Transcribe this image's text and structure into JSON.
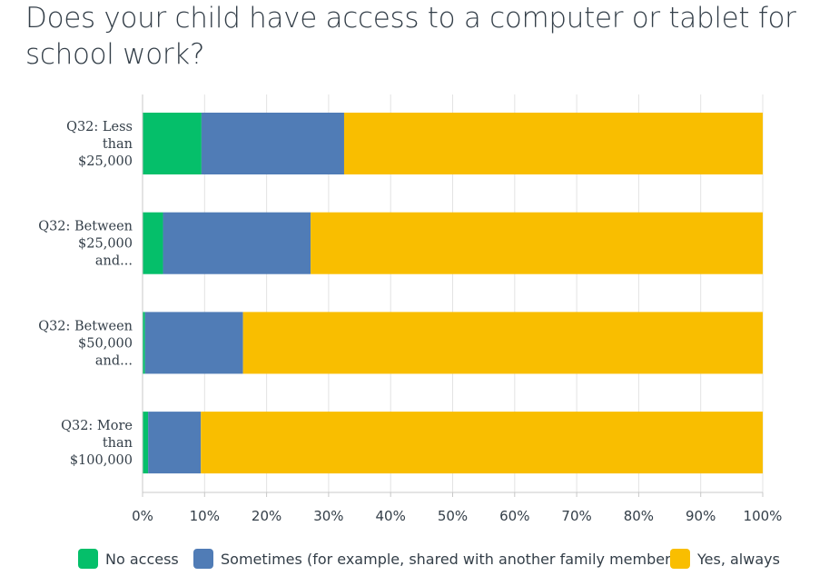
{
  "title": "Does your child have access to a computer or tablet for school work?",
  "colors": {
    "no_access": "#05bf6a",
    "sometimes": "#507cb6",
    "yes_always": "#f9be00",
    "grid": "#e3e3e3",
    "axis": "#c8c8c8",
    "text": "#333e48"
  },
  "chart_data": {
    "type": "bar",
    "orientation": "horizontal",
    "stacked": true,
    "categories": [
      [
        "Q32: Less",
        "than",
        "$25,000"
      ],
      [
        "Q32: Between",
        "$25,000",
        "and..."
      ],
      [
        "Q32: Between",
        "$50,000",
        "and..."
      ],
      [
        "Q32: More",
        "than",
        "$100,000"
      ]
    ],
    "series": [
      {
        "name": "No access",
        "color": "#05bf6a",
        "values": [
          9.5,
          3.3,
          0.4,
          0.9
        ]
      },
      {
        "name": "Sometimes (for example, shared with another family member)",
        "color": "#507cb6",
        "values": [
          23.0,
          23.8,
          15.8,
          8.5
        ]
      },
      {
        "name": "Yes, always",
        "color": "#f9be00",
        "values": [
          67.5,
          72.9,
          83.8,
          90.6
        ]
      }
    ],
    "xlim": [
      0,
      100
    ],
    "xticks": [
      "0%",
      "10%",
      "20%",
      "30%",
      "40%",
      "50%",
      "60%",
      "70%",
      "80%",
      "90%",
      "100%"
    ],
    "grid": true,
    "legend_position": "bottom"
  },
  "legend": [
    {
      "label": "No access",
      "color": "#05bf6a"
    },
    {
      "label": "Sometimes (for example, shared with another family member)",
      "color": "#507cb6"
    },
    {
      "label": "Yes, always",
      "color": "#f9be00"
    }
  ]
}
